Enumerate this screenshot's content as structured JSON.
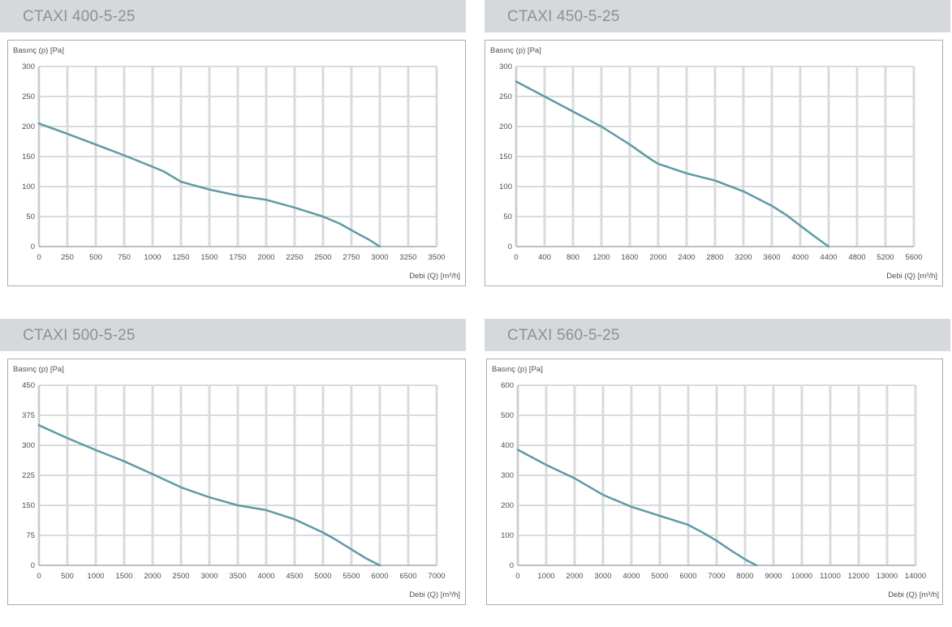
{
  "colors": {
    "header_bg": "#d6d9dc",
    "title": "#8c9196",
    "grid": "#d8dbde",
    "curve": "#5e9aa6",
    "axis_text": "#4a4f55"
  },
  "chart_data": [
    {
      "type": "line",
      "title": "CTAXI 400-5-25",
      "ylabel": "Basınç (p) [Pa]",
      "xlabel": "Debi (Q) [m³/h]",
      "xlim": [
        0,
        3500
      ],
      "ylim": [
        0,
        300
      ],
      "x_ticks": [
        0,
        250,
        500,
        750,
        1000,
        1250,
        1500,
        1750,
        2000,
        2250,
        2500,
        2750,
        3000,
        3250,
        3500
      ],
      "y_ticks": [
        0,
        50,
        100,
        150,
        200,
        250,
        300
      ],
      "grid": true,
      "series": [
        {
          "x": [
            0,
            250,
            500,
            750,
            1000,
            1100,
            1250,
            1500,
            1750,
            2000,
            2250,
            2500,
            2650,
            2800,
            2900,
            3000
          ],
          "y": [
            205,
            188,
            170,
            152,
            133,
            125,
            108,
            95,
            85,
            78,
            65,
            50,
            38,
            22,
            12,
            0
          ]
        }
      ]
    },
    {
      "type": "line",
      "title": "CTAXI 450-5-25",
      "ylabel": "Basınç (p) [Pa]",
      "xlabel": "Debi (Q) [m³/h]",
      "xlim": [
        0,
        5600
      ],
      "ylim": [
        0,
        300
      ],
      "x_ticks": [
        0,
        400,
        800,
        1200,
        1600,
        2000,
        2400,
        2800,
        3200,
        3600,
        4000,
        4400,
        4800,
        5200,
        5600
      ],
      "y_ticks": [
        0,
        50,
        100,
        150,
        200,
        250,
        300
      ],
      "grid": true,
      "series": [
        {
          "x": [
            0,
            400,
            800,
            1200,
            1600,
            1900,
            2000,
            2400,
            2800,
            3200,
            3600,
            3800,
            4000,
            4200,
            4400
          ],
          "y": [
            275,
            250,
            225,
            200,
            170,
            145,
            138,
            122,
            110,
            92,
            68,
            53,
            35,
            17,
            0
          ]
        }
      ]
    },
    {
      "type": "line",
      "title": "CTAXI 500-5-25",
      "ylabel": "Basınç (p) [Pa]",
      "xlabel": "Debi (Q) [m³/h]",
      "xlim": [
        0,
        7000
      ],
      "ylim": [
        0,
        450
      ],
      "x_ticks": [
        0,
        500,
        1000,
        1500,
        2000,
        2500,
        3000,
        3500,
        4000,
        4500,
        5000,
        5500,
        6000,
        6500,
        7000
      ],
      "y_ticks": [
        0,
        75,
        150,
        225,
        300,
        375,
        450
      ],
      "grid": true,
      "series": [
        {
          "x": [
            0,
            500,
            1000,
            1500,
            2000,
            2500,
            3000,
            3500,
            4000,
            4500,
            5000,
            5250,
            5500,
            5750,
            6000
          ],
          "y": [
            350,
            318,
            288,
            260,
            228,
            195,
            170,
            150,
            138,
            115,
            82,
            62,
            40,
            18,
            0
          ]
        }
      ]
    },
    {
      "type": "line",
      "title": "CTAXI 560-5-25",
      "ylabel": "Basınç (p) [Pa]",
      "xlabel": "Debi (Q) [m³/h]",
      "xlim": [
        0,
        14000
      ],
      "ylim": [
        0,
        600
      ],
      "x_ticks": [
        0,
        1000,
        2000,
        3000,
        4000,
        5000,
        6000,
        7000,
        8000,
        9000,
        10000,
        11000,
        12000,
        13000,
        14000
      ],
      "y_ticks": [
        0,
        100,
        200,
        300,
        400,
        500,
        600
      ],
      "grid": true,
      "series": [
        {
          "x": [
            0,
            1000,
            2000,
            3000,
            4000,
            5000,
            6000,
            6500,
            7000,
            7500,
            8000,
            8400
          ],
          "y": [
            385,
            335,
            290,
            235,
            195,
            165,
            135,
            110,
            82,
            50,
            20,
            0
          ]
        }
      ]
    }
  ]
}
